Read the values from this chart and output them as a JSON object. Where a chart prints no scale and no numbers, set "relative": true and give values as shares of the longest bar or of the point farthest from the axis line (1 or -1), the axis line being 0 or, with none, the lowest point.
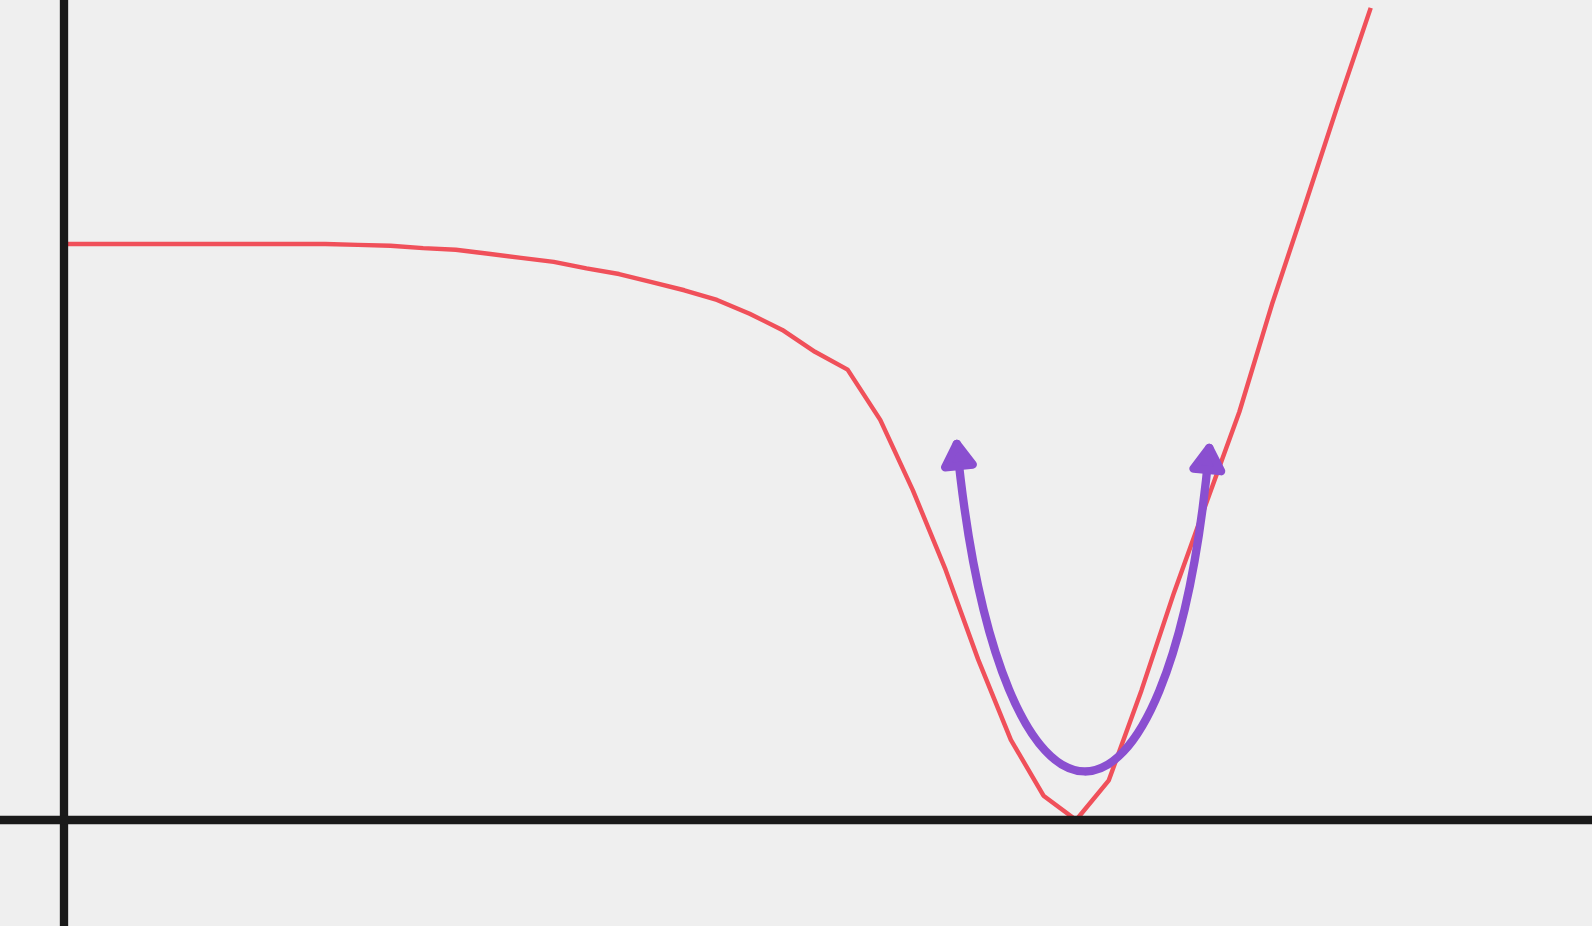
{
  "chart_data": {
    "type": "line",
    "relative": true,
    "categories": [
      null,
      null,
      null,
      null,
      null,
      null,
      null,
      null,
      null,
      null,
      null,
      null,
      null,
      null,
      null,
      null,
      null,
      null,
      null,
      null,
      null,
      null,
      null,
      null,
      null,
      null,
      null,
      null,
      null,
      null,
      null,
      null,
      null,
      null,
      null,
      null,
      null,
      null,
      null,
      null,
      null
    ],
    "series": [
      {
        "color": "#f0505a",
        "values": [
          0.711,
          0.711,
          0.711,
          0.711,
          0.711,
          0.711,
          0.711,
          0.711,
          0.711,
          0.71,
          0.709,
          0.706,
          0.704,
          0.699,
          0.694,
          0.689,
          0.681,
          0.674,
          0.664,
          0.654,
          0.642,
          0.625,
          0.605,
          0.578,
          0.556,
          0.494,
          0.407,
          0.309,
          0.198,
          0.099,
          0.03,
          0,
          0.049,
          0.16,
          0.281,
          0.393,
          0.504,
          0.637,
          0.758,
          0.881,
          1
        ]
      }
    ],
    "marker": "none",
    "line_style": "solid"
  }
}
